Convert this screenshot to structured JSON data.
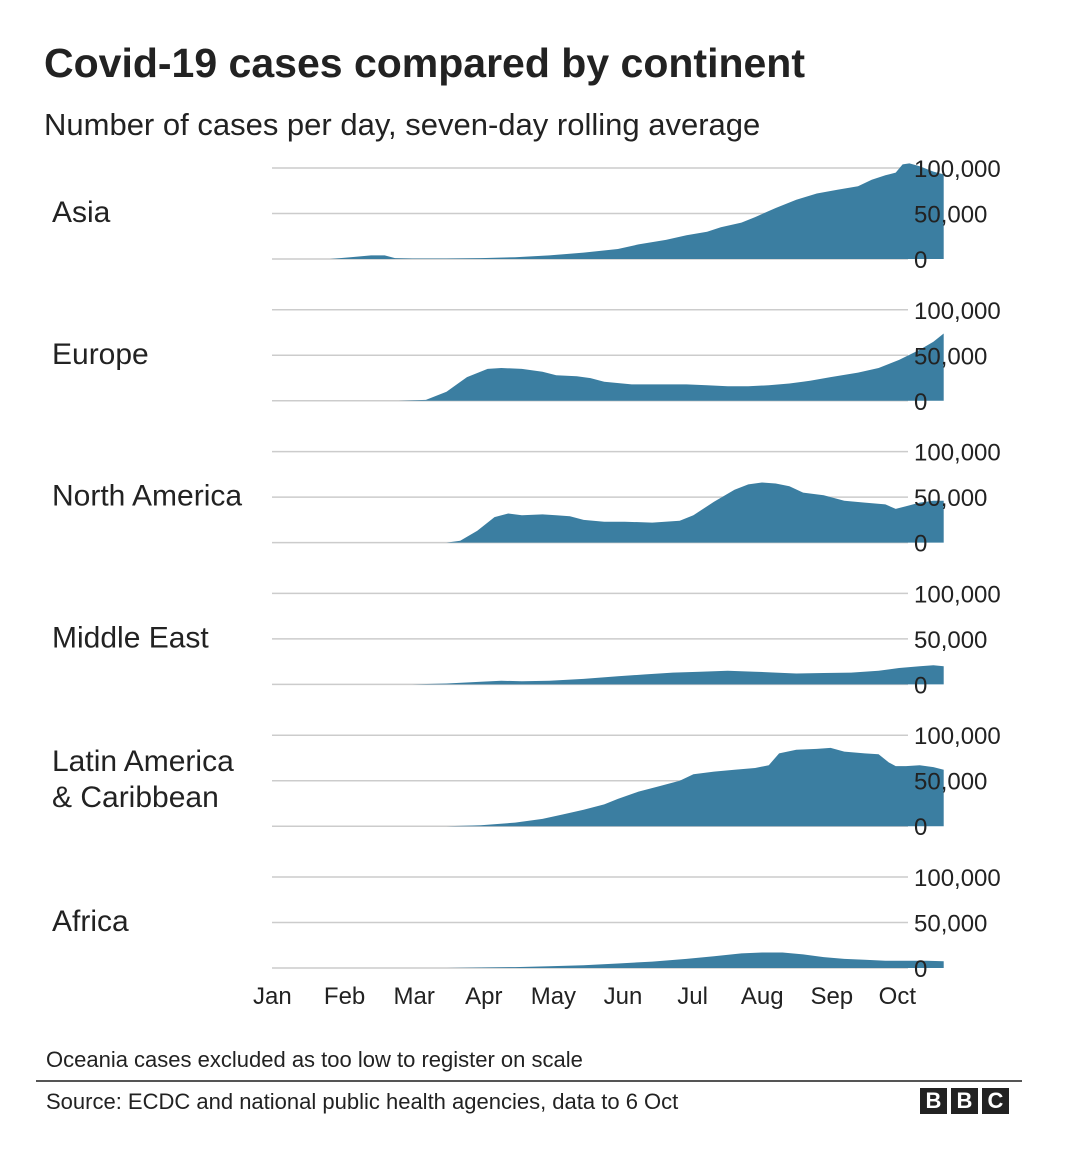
{
  "header": {
    "title": "Covid-19 cases compared by continent",
    "subtitle": "Number of cases per day, seven-day rolling average"
  },
  "chart_data": {
    "type": "area",
    "title": "Covid-19 cases compared by continent",
    "subtitle": "Number of cases per day, seven-day rolling average",
    "xlabel": "",
    "ylabel": "",
    "x_ticks": [
      "Jan",
      "Feb",
      "Mar",
      "Apr",
      "May",
      "Jun",
      "Jul",
      "Aug",
      "Sep",
      "Oct"
    ],
    "x_range_months": [
      0,
      9.2
    ],
    "ylim": [
      0,
      100000
    ],
    "y_ticks": [
      0,
      50000,
      100000
    ],
    "y_tick_labels": [
      "0",
      "50,000",
      "100,000"
    ],
    "grid": true,
    "color": "#3b7ea1",
    "series": [
      {
        "name": "Asia",
        "points": [
          [
            0,
            0
          ],
          [
            0.8,
            0
          ],
          [
            1.1,
            2000
          ],
          [
            1.4,
            4000
          ],
          [
            1.6,
            4000
          ],
          [
            1.75,
            1000
          ],
          [
            2.0,
            500
          ],
          [
            2.5,
            500
          ],
          [
            3.0,
            1000
          ],
          [
            3.5,
            2000
          ],
          [
            4.0,
            4000
          ],
          [
            4.5,
            7000
          ],
          [
            5.0,
            11000
          ],
          [
            5.3,
            16000
          ],
          [
            5.7,
            21000
          ],
          [
            6.0,
            26000
          ],
          [
            6.3,
            30000
          ],
          [
            6.5,
            35000
          ],
          [
            6.8,
            40000
          ],
          [
            7.0,
            46000
          ],
          [
            7.3,
            56000
          ],
          [
            7.6,
            65000
          ],
          [
            7.9,
            72000
          ],
          [
            8.2,
            76000
          ],
          [
            8.5,
            80000
          ],
          [
            8.7,
            87000
          ],
          [
            8.9,
            92000
          ],
          [
            9.05,
            95000
          ],
          [
            9.15,
            104000
          ],
          [
            9.25,
            105000
          ],
          [
            9.4,
            102000
          ],
          [
            9.6,
            96000
          ],
          [
            9.75,
            93000
          ]
        ]
      },
      {
        "name": "Europe",
        "points": [
          [
            0,
            0
          ],
          [
            1.8,
            0
          ],
          [
            2.2,
            1000
          ],
          [
            2.5,
            10000
          ],
          [
            2.8,
            26000
          ],
          [
            3.1,
            35000
          ],
          [
            3.3,
            36000
          ],
          [
            3.6,
            35000
          ],
          [
            3.9,
            32000
          ],
          [
            4.1,
            28000
          ],
          [
            4.4,
            27000
          ],
          [
            4.6,
            25000
          ],
          [
            4.8,
            21000
          ],
          [
            5.2,
            18000
          ],
          [
            5.6,
            18000
          ],
          [
            6.0,
            18000
          ],
          [
            6.3,
            17000
          ],
          [
            6.6,
            16000
          ],
          [
            6.9,
            16000
          ],
          [
            7.2,
            17000
          ],
          [
            7.5,
            19000
          ],
          [
            7.8,
            22000
          ],
          [
            8.1,
            26000
          ],
          [
            8.5,
            31000
          ],
          [
            8.8,
            36000
          ],
          [
            9.1,
            45000
          ],
          [
            9.4,
            56000
          ],
          [
            9.6,
            65000
          ],
          [
            9.75,
            74000
          ]
        ]
      },
      {
        "name": "North America",
        "points": [
          [
            0,
            0
          ],
          [
            2.5,
            0
          ],
          [
            2.7,
            2000
          ],
          [
            2.95,
            13000
          ],
          [
            3.2,
            28000
          ],
          [
            3.4,
            32000
          ],
          [
            3.6,
            30000
          ],
          [
            3.9,
            31000
          ],
          [
            4.1,
            30000
          ],
          [
            4.3,
            29000
          ],
          [
            4.5,
            25000
          ],
          [
            4.8,
            23000
          ],
          [
            5.1,
            23000
          ],
          [
            5.5,
            22000
          ],
          [
            5.9,
            24000
          ],
          [
            6.1,
            30000
          ],
          [
            6.4,
            45000
          ],
          [
            6.7,
            58000
          ],
          [
            6.9,
            64000
          ],
          [
            7.1,
            66000
          ],
          [
            7.3,
            65000
          ],
          [
            7.5,
            62000
          ],
          [
            7.7,
            55000
          ],
          [
            8.0,
            52000
          ],
          [
            8.3,
            46000
          ],
          [
            8.6,
            44000
          ],
          [
            8.9,
            42000
          ],
          [
            9.05,
            37000
          ],
          [
            9.2,
            40000
          ],
          [
            9.4,
            44000
          ],
          [
            9.6,
            46000
          ],
          [
            9.75,
            46000
          ]
        ]
      },
      {
        "name": "Middle East",
        "points": [
          [
            0,
            0
          ],
          [
            2.0,
            0
          ],
          [
            2.5,
            1000
          ],
          [
            3.0,
            3000
          ],
          [
            3.3,
            4000
          ],
          [
            3.6,
            3500
          ],
          [
            4.0,
            4000
          ],
          [
            4.5,
            6000
          ],
          [
            5.0,
            9000
          ],
          [
            5.4,
            11000
          ],
          [
            5.8,
            13000
          ],
          [
            6.2,
            14000
          ],
          [
            6.6,
            15000
          ],
          [
            7.0,
            14000
          ],
          [
            7.3,
            13000
          ],
          [
            7.6,
            12000
          ],
          [
            8.0,
            12500
          ],
          [
            8.4,
            13000
          ],
          [
            8.8,
            15000
          ],
          [
            9.1,
            18000
          ],
          [
            9.4,
            20000
          ],
          [
            9.6,
            21000
          ],
          [
            9.75,
            20000
          ]
        ]
      },
      {
        "name": "Latin America & Caribbean",
        "points": [
          [
            0,
            0
          ],
          [
            2.5,
            0
          ],
          [
            3.0,
            1000
          ],
          [
            3.5,
            4000
          ],
          [
            3.9,
            8000
          ],
          [
            4.2,
            13000
          ],
          [
            4.5,
            18000
          ],
          [
            4.8,
            24000
          ],
          [
            5.0,
            30000
          ],
          [
            5.3,
            38000
          ],
          [
            5.6,
            44000
          ],
          [
            5.9,
            50000
          ],
          [
            6.1,
            57000
          ],
          [
            6.4,
            60000
          ],
          [
            6.7,
            62000
          ],
          [
            7.0,
            64000
          ],
          [
            7.2,
            67000
          ],
          [
            7.35,
            80000
          ],
          [
            7.6,
            84000
          ],
          [
            7.9,
            85000
          ],
          [
            8.1,
            86000
          ],
          [
            8.3,
            82000
          ],
          [
            8.6,
            80000
          ],
          [
            8.8,
            79000
          ],
          [
            8.95,
            70000
          ],
          [
            9.05,
            66000
          ],
          [
            9.2,
            66000
          ],
          [
            9.4,
            67000
          ],
          [
            9.6,
            65000
          ],
          [
            9.75,
            62000
          ]
        ]
      },
      {
        "name": "Africa",
        "points": [
          [
            0,
            0
          ],
          [
            2.5,
            0
          ],
          [
            3.0,
            500
          ],
          [
            3.5,
            1000
          ],
          [
            4.0,
            2000
          ],
          [
            4.5,
            3000
          ],
          [
            5.0,
            5000
          ],
          [
            5.5,
            7000
          ],
          [
            6.0,
            10000
          ],
          [
            6.4,
            13000
          ],
          [
            6.8,
            16000
          ],
          [
            7.1,
            17000
          ],
          [
            7.4,
            17000
          ],
          [
            7.7,
            15000
          ],
          [
            8.0,
            12000
          ],
          [
            8.3,
            10000
          ],
          [
            8.6,
            9000
          ],
          [
            8.9,
            8000
          ],
          [
            9.2,
            8000
          ],
          [
            9.5,
            8000
          ],
          [
            9.75,
            7500
          ]
        ]
      }
    ],
    "facet_labels": [
      [
        "Asia"
      ],
      [
        "Europe"
      ],
      [
        "North America"
      ],
      [
        "Middle East"
      ],
      [
        "Latin America",
        "& Caribbean"
      ],
      [
        "Africa"
      ]
    ]
  },
  "footer": {
    "note": "Oceania cases excluded as too low to register on scale",
    "source": "Source: ECDC and national public health agencies, data to 6 Oct",
    "logo_letters": [
      "B",
      "B",
      "C"
    ]
  }
}
